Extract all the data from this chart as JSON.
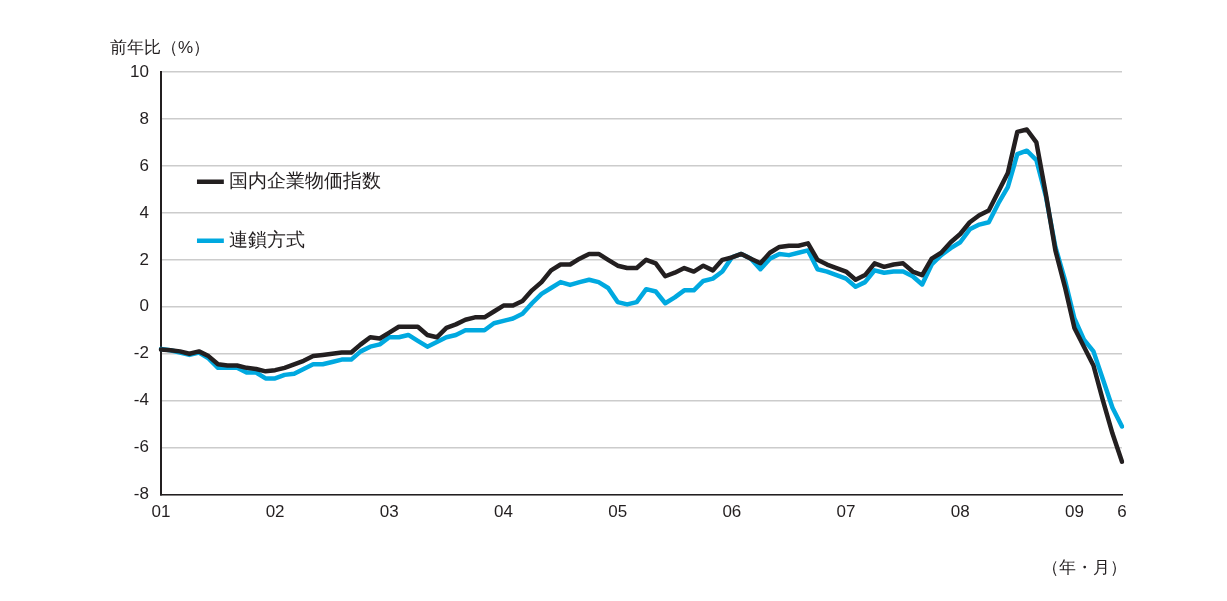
{
  "chart_data": {
    "type": "line",
    "ylabel": "前年比（%）",
    "xlabel": "（年・月）",
    "categories": [
      "01",
      null,
      null,
      null,
      null,
      null,
      null,
      null,
      null,
      null,
      null,
      null,
      "02",
      null,
      null,
      null,
      null,
      null,
      null,
      null,
      null,
      null,
      null,
      null,
      "03",
      null,
      null,
      null,
      null,
      null,
      null,
      null,
      null,
      null,
      null,
      null,
      "04",
      null,
      null,
      null,
      null,
      null,
      null,
      null,
      null,
      null,
      null,
      null,
      "05",
      null,
      null,
      null,
      null,
      null,
      null,
      null,
      null,
      null,
      null,
      null,
      "06",
      null,
      null,
      null,
      null,
      null,
      null,
      null,
      null,
      null,
      null,
      null,
      "07",
      null,
      null,
      null,
      null,
      null,
      null,
      null,
      null,
      null,
      null,
      null,
      "08",
      null,
      null,
      null,
      null,
      null,
      null,
      null,
      null,
      null,
      null,
      null,
      "09",
      null,
      null,
      null,
      null,
      "6"
    ],
    "series": [
      {
        "name": "国内企業物価指数",
        "color": "#231f20",
        "values": [
          -1.82,
          -1.85,
          -1.9,
          -2.0,
          -1.9,
          -2.1,
          -2.45,
          -2.5,
          -2.5,
          -2.6,
          -2.65,
          -2.75,
          -2.7,
          -2.6,
          -2.45,
          -2.3,
          -2.1,
          -2.05,
          -2.0,
          -1.95,
          -1.95,
          -1.6,
          -1.3,
          -1.35,
          -1.1,
          -0.85,
          -0.85,
          -0.85,
          -1.2,
          -1.3,
          -0.9,
          -0.75,
          -0.55,
          -0.45,
          -0.45,
          -0.2,
          0.05,
          0.05,
          0.25,
          0.7,
          1.05,
          1.55,
          1.8,
          1.8,
          2.05,
          2.25,
          2.25,
          2.0,
          1.75,
          1.65,
          1.65,
          2.0,
          1.85,
          1.3,
          1.45,
          1.65,
          1.5,
          1.75,
          1.55,
          2.0,
          2.1,
          2.25,
          2.05,
          1.85,
          2.3,
          2.55,
          2.6,
          2.6,
          2.7,
          2.0,
          1.8,
          1.65,
          1.5,
          1.15,
          1.35,
          1.85,
          1.7,
          1.8,
          1.85,
          1.5,
          1.35,
          2.05,
          2.3,
          2.75,
          3.1,
          3.6,
          3.9,
          4.1,
          4.9,
          5.7,
          7.45,
          7.55,
          7.0,
          4.8,
          2.4,
          0.85,
          -0.9,
          -1.7,
          -2.5,
          -4.0,
          -5.4,
          -6.6
        ]
      },
      {
        "name": "連鎖方式",
        "color": "#00a9e0",
        "values": [
          -1.8,
          -1.85,
          -1.95,
          -2.05,
          -1.95,
          -2.2,
          -2.6,
          -2.6,
          -2.6,
          -2.8,
          -2.8,
          -3.05,
          -3.05,
          -2.9,
          -2.85,
          -2.65,
          -2.45,
          -2.45,
          -2.35,
          -2.25,
          -2.25,
          -1.9,
          -1.7,
          -1.6,
          -1.3,
          -1.3,
          -1.2,
          -1.45,
          -1.7,
          -1.5,
          -1.3,
          -1.2,
          -1.0,
          -1.0,
          -1.0,
          -0.7,
          -0.6,
          -0.5,
          -0.3,
          0.15,
          0.55,
          0.8,
          1.05,
          0.93,
          1.05,
          1.15,
          1.05,
          0.8,
          0.2,
          0.1,
          0.2,
          0.75,
          0.65,
          0.15,
          0.4,
          0.7,
          0.7,
          1.1,
          1.2,
          1.5,
          2.1,
          2.25,
          2.05,
          1.6,
          2.05,
          2.25,
          2.2,
          2.3,
          2.4,
          1.6,
          1.5,
          1.35,
          1.2,
          0.85,
          1.05,
          1.55,
          1.45,
          1.5,
          1.5,
          1.3,
          0.95,
          1.8,
          2.2,
          2.5,
          2.75,
          3.3,
          3.5,
          3.6,
          4.4,
          5.1,
          6.5,
          6.65,
          6.25,
          4.7,
          2.55,
          1.15,
          -0.5,
          -1.4,
          -1.9,
          -3.1,
          -4.3,
          -5.1
        ]
      }
    ],
    "ylim": [
      -8,
      10
    ],
    "yticks": [
      -8,
      -6,
      -4,
      -2,
      0,
      2,
      4,
      6,
      8,
      10
    ],
    "grid": "y",
    "legend": "top",
    "marker": "none",
    "line_style": "solid"
  }
}
